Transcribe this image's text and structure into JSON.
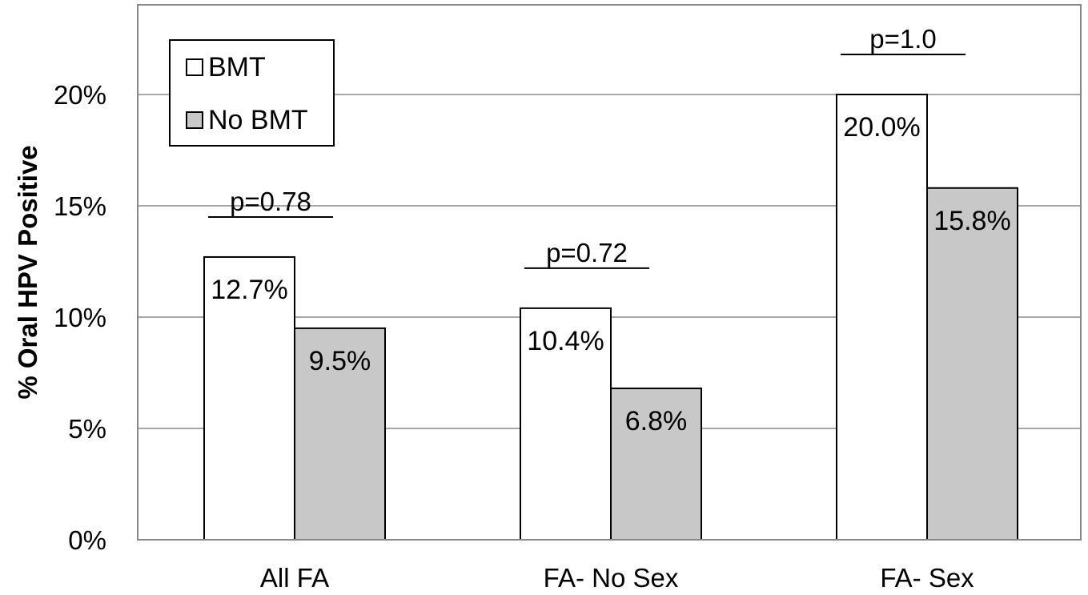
{
  "chart_data": {
    "type": "bar",
    "title": "",
    "xlabel": "",
    "ylabel": "% Oral HPV Positive",
    "categories": [
      "All FA",
      "FA- No Sex",
      "FA- Sex"
    ],
    "series": [
      {
        "name": "BMT",
        "color": "#ffffff",
        "values": [
          12.7,
          10.4,
          20.0
        ],
        "labels": [
          "12.7%",
          "10.4%",
          "20.0%"
        ]
      },
      {
        "name": "No BMT",
        "color": "#c8c8c8",
        "values": [
          9.5,
          6.8,
          15.8
        ],
        "labels": [
          "9.5%",
          "6.8%",
          "15.8%"
        ]
      }
    ],
    "ylim": [
      0,
      20
    ],
    "yticks": [
      0,
      5,
      10,
      15,
      20
    ],
    "ytick_labels": [
      "0%",
      "5%",
      "10%",
      "15%",
      "20%"
    ],
    "grid": true,
    "legend_position": "top-left",
    "annotations": [
      "p=0.78",
      "p=0.72",
      "p=1.0"
    ]
  }
}
